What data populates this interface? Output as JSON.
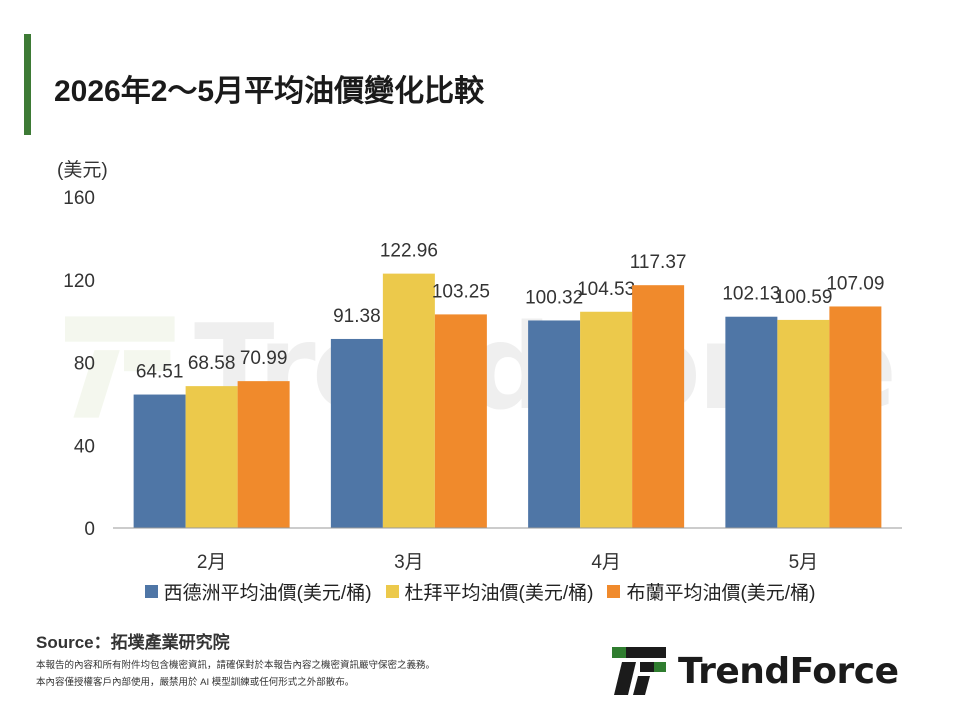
{
  "title": "2026年2～5月平均油價變化比較",
  "colors": {
    "accent": "#3d7a35",
    "wti": "#4f76a6",
    "dubai": "#ecc94b",
    "brent": "#f08a2c",
    "logo_green": "#2f7d2f",
    "logo_dark": "#1b1b1b"
  },
  "chart_data": {
    "type": "bar",
    "unit_label": "(美元)",
    "categories": [
      "2月",
      "3月",
      "4月",
      "5月"
    ],
    "ylim": [
      0,
      160
    ],
    "yticks": [
      0,
      40,
      80,
      120,
      160
    ],
    "grid": false,
    "legend_position": "bottom",
    "series": [
      {
        "name": "西德洲平均油價(美元/桶)",
        "values": [
          64.51,
          91.38,
          100.32,
          102.13
        ]
      },
      {
        "name": "杜拜平均油價(美元/桶)",
        "values": [
          68.58,
          122.96,
          104.53,
          100.59
        ]
      },
      {
        "name": "布蘭平均油價(美元/桶)",
        "values": [
          70.99,
          103.25,
          117.37,
          107.09
        ]
      }
    ]
  },
  "source": "Source：拓墣產業研究院",
  "disclaimer": [
    "本報告的內容和所有附件均包含機密資訊，請確保對於本報告內容之機密資訊嚴守保密之義務。",
    "本內容僅授權客戶內部使用，嚴禁用於 AI 模型訓練或任何形式之外部散布。"
  ],
  "logo": {
    "name": "TrendForce",
    "icon": "trendforce-logo-icon"
  }
}
